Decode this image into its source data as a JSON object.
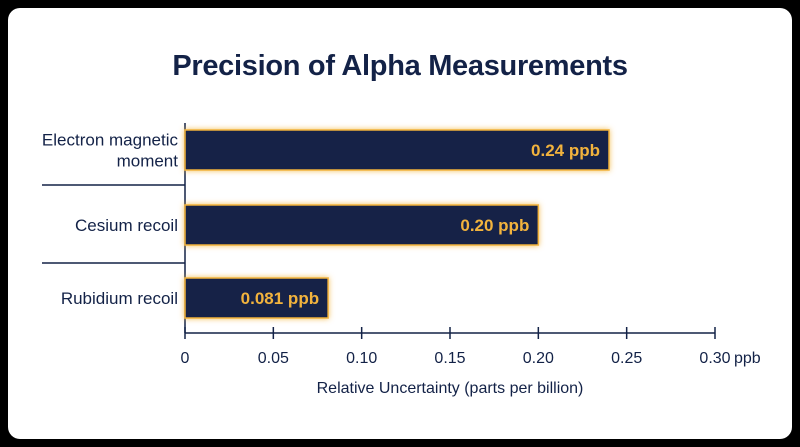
{
  "chart_data": {
    "type": "bar",
    "orientation": "horizontal",
    "title": "Precision of Alpha Measurements",
    "xlabel": "Relative Uncertainty (parts per billion)",
    "ylabel": "",
    "xlim": [
      0,
      0.3
    ],
    "x_unit": "ppb",
    "ticks": [
      "0",
      "0.05",
      "0.10",
      "0.15",
      "0.20",
      "0.25",
      "0.30"
    ],
    "tick_values": [
      0,
      0.05,
      0.1,
      0.15,
      0.2,
      0.25,
      0.3
    ],
    "categories": [
      [
        "Electron magnetic",
        "moment"
      ],
      [
        "Cesium recoil"
      ],
      [
        "Rubidium recoil"
      ]
    ],
    "values": [
      0.24,
      0.2,
      0.081
    ],
    "value_labels": [
      "0.24 ppb",
      "0.20 ppb",
      "0.081 ppb"
    ],
    "grid": false,
    "legend": "none",
    "colors": {
      "bar": "#132247",
      "bar_glow": "#f2b33d",
      "label": "#f2b33d",
      "text": "#132247",
      "background": "#ffffff"
    }
  }
}
